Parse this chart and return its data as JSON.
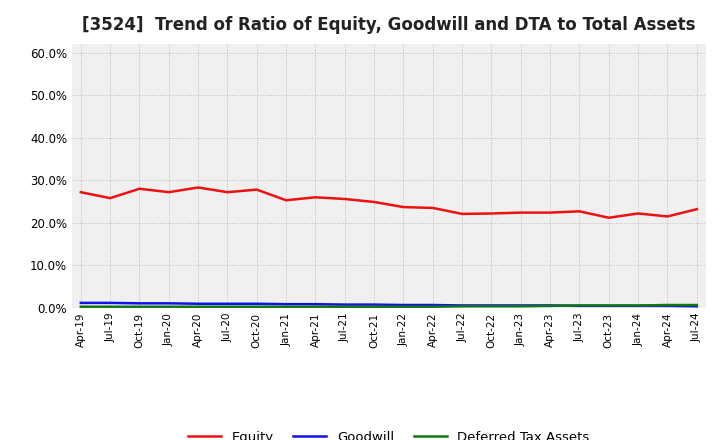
{
  "title": "[3524]  Trend of Ratio of Equity, Goodwill and DTA to Total Assets",
  "title_fontsize": 12,
  "background_color": "#ffffff",
  "plot_bg_color": "#f0f0f0",
  "grid_color": "#bbbbbb",
  "ylim": [
    0.0,
    0.62
  ],
  "yticks": [
    0.0,
    0.1,
    0.2,
    0.3,
    0.4,
    0.5,
    0.6
  ],
  "x_labels": [
    "Apr-19",
    "Jul-19",
    "Oct-19",
    "Jan-20",
    "Apr-20",
    "Jul-20",
    "Oct-20",
    "Jan-21",
    "Apr-21",
    "Jul-21",
    "Oct-21",
    "Jan-22",
    "Apr-22",
    "Jul-22",
    "Oct-22",
    "Jan-23",
    "Apr-23",
    "Jul-23",
    "Oct-23",
    "Jan-24",
    "Apr-24",
    "Jul-24"
  ],
  "equity": [
    0.272,
    0.258,
    0.28,
    0.272,
    0.283,
    0.272,
    0.278,
    0.253,
    0.26,
    0.256,
    0.249,
    0.237,
    0.235,
    0.221,
    0.222,
    0.224,
    0.224,
    0.227,
    0.212,
    0.222,
    0.215,
    0.232
  ],
  "goodwill": [
    0.012,
    0.012,
    0.011,
    0.011,
    0.01,
    0.01,
    0.01,
    0.009,
    0.009,
    0.008,
    0.008,
    0.007,
    0.007,
    0.006,
    0.006,
    0.006,
    0.006,
    0.005,
    0.005,
    0.005,
    0.005,
    0.004
  ],
  "dta": [
    0.003,
    0.003,
    0.003,
    0.003,
    0.003,
    0.003,
    0.003,
    0.003,
    0.003,
    0.003,
    0.003,
    0.003,
    0.003,
    0.004,
    0.004,
    0.004,
    0.005,
    0.006,
    0.006,
    0.006,
    0.007,
    0.007
  ],
  "equity_color": "#ee1111",
  "goodwill_color": "#1111ee",
  "dta_color": "#117711",
  "legend_labels": [
    "Equity",
    "Goodwill",
    "Deferred Tax Assets"
  ]
}
